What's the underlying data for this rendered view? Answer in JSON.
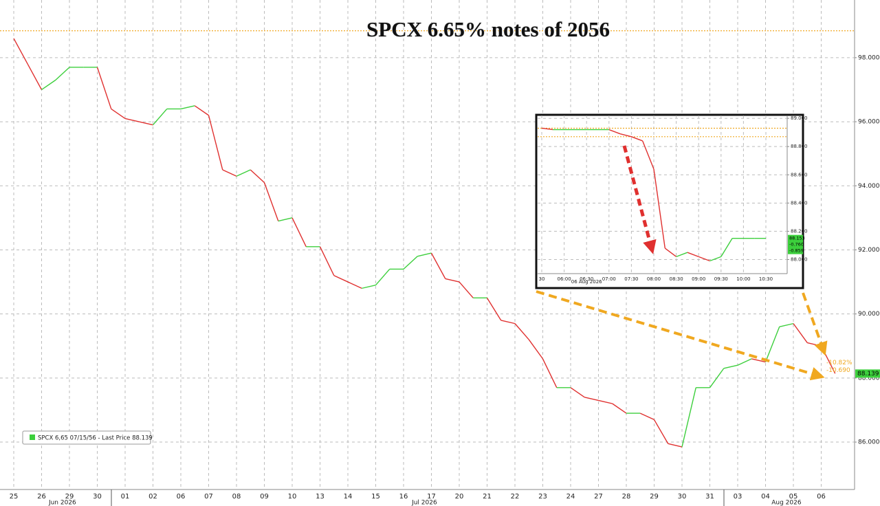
{
  "chart_data": [
    {
      "type": "line",
      "title": "SPCX 6.65% notes of 2056",
      "categories": [
        "25",
        null,
        "26",
        null,
        "29",
        null,
        "30",
        null,
        "01",
        null,
        "02",
        null,
        "06",
        null,
        "07",
        null,
        "08",
        null,
        "09",
        null,
        "10",
        null,
        "13",
        null,
        "14",
        null,
        "15",
        null,
        "16",
        null,
        "17",
        null,
        "20",
        null,
        "21",
        null,
        "22",
        null,
        "23",
        null,
        "24",
        null,
        "27",
        null,
        "28",
        null,
        "29",
        null,
        "30",
        null,
        "31",
        null,
        "03",
        null,
        "04",
        null,
        "05",
        null,
        "06",
        null
      ],
      "months": [
        "Jun 2026",
        "Jul 2026",
        "Aug 2026"
      ],
      "series": [
        {
          "name": "SPCX 6,65 07/15/56 - Last Price 88.139",
          "values": [
            98.6,
            97.8,
            97.0,
            97.3,
            97.7,
            97.7,
            97.7,
            96.4,
            96.1,
            96.0,
            95.9,
            96.4,
            96.4,
            96.5,
            96.2,
            94.5,
            94.3,
            94.5,
            94.1,
            92.9,
            93.0,
            92.1,
            92.1,
            91.2,
            91.0,
            90.8,
            90.9,
            91.4,
            91.4,
            91.8,
            91.9,
            91.1,
            91.0,
            90.5,
            90.5,
            89.8,
            89.7,
            89.2,
            88.6,
            87.7,
            87.7,
            87.4,
            87.3,
            87.2,
            86.9,
            86.9,
            86.7,
            85.95,
            85.85,
            87.7,
            87.7,
            88.3,
            88.4,
            88.6,
            88.5,
            89.6,
            89.7,
            89.1,
            89.0,
            88.139
          ]
        }
      ],
      "up_color": "#3ccf3c",
      "down_color": "#e0302f",
      "ylim": [
        84.52,
        99.8
      ],
      "yticks": [
        {
          "value": 86,
          "label": "86.000"
        },
        {
          "value": 88,
          "label": "88.000"
        },
        {
          "value": 90,
          "label": "90.000"
        },
        {
          "value": 92,
          "label": "92.000"
        },
        {
          "value": 94,
          "label": "94.000"
        },
        {
          "value": 96,
          "label": "96.000"
        },
        {
          "value": 98,
          "label": "98.000"
        }
      ],
      "grid": true,
      "hlines": [
        98.84
      ],
      "last_label": "88.139",
      "change_labels": [
        "-10.82%",
        "-10.690"
      ]
    },
    {
      "type": "line",
      "categories": [
        "30",
        null,
        "06:00",
        null,
        "06:30",
        null,
        "07:00",
        null,
        "07:30",
        null,
        "08:00",
        null,
        "08:30",
        null,
        "09:00",
        null,
        "09:30",
        null,
        "10:00",
        null,
        "10:30"
      ],
      "date_label": "06 Aug 2026",
      "series": [
        {
          "values": [
            88.93,
            88.92,
            88.92,
            88.92,
            88.92,
            88.92,
            88.92,
            88.89,
            88.87,
            88.84,
            88.64,
            88.08,
            88.02,
            88.05,
            88.02,
            87.99,
            88.02,
            88.15,
            88.15,
            88.15,
            88.15
          ]
        }
      ],
      "up_color": "#3ccf3c",
      "down_color": "#e0302f",
      "ylim": [
        87.9,
        89.02
      ],
      "yticks": [
        {
          "value": 88,
          "label": "88.000"
        },
        {
          "value": 88.2,
          "label": "88.200"
        },
        {
          "value": 88.4,
          "label": "88.400"
        },
        {
          "value": 88.6,
          "label": "88.600"
        },
        {
          "value": 88.8,
          "label": "88.800"
        },
        {
          "value": 89,
          "label": "89.000"
        }
      ],
      "grid": true,
      "hlines": [
        88.93,
        88.87
      ],
      "last_label": "88.153",
      "change_labels": [
        "-0.760",
        "-0.859"
      ]
    }
  ]
}
